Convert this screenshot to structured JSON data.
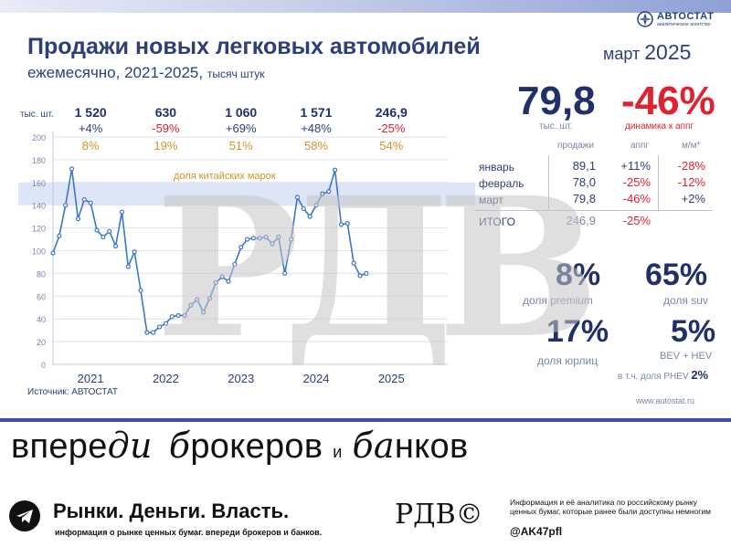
{
  "header": {
    "title": "Продажи новых легковых автомобилей",
    "subtitle": "ежемесячно, 2021-2025,",
    "unit": "тысяч штук",
    "period_month": "март",
    "period_year": "2025",
    "logo": "АВТОСТАТ",
    "logo_tagline": "аналитическое агентство"
  },
  "chart_data": {
    "type": "line",
    "ylabel_unit": "тыс. шт.",
    "ylim": [
      0,
      200
    ],
    "yticks": [
      "0",
      "20",
      "40",
      "60",
      "80",
      "100",
      "120",
      "140",
      "160",
      "180",
      "200"
    ],
    "year_labels": [
      "2021",
      "2022",
      "2023",
      "2024",
      "2025"
    ],
    "band": {
      "label": "доля китайских марок",
      "from": 140,
      "to": 160
    },
    "series": [
      {
        "values": [
          98,
          113,
          140,
          172,
          128,
          145,
          142,
          118,
          112,
          117,
          104,
          134,
          86,
          99,
          65,
          28,
          28,
          33,
          36,
          42,
          43,
          43,
          52,
          57,
          46,
          58,
          72,
          77,
          73,
          88,
          103,
          110,
          111,
          111,
          112,
          106,
          112,
          80,
          110,
          147,
          137,
          130,
          140,
          150,
          152,
          171,
          123,
          124,
          89,
          78,
          80
        ]
      }
    ],
    "annual": [
      {
        "year": "2021",
        "total": "1 520",
        "yoy": "+4%",
        "china_share": "8%"
      },
      {
        "year": "2022",
        "total": "630",
        "yoy": "-59%",
        "china_share": "19%"
      },
      {
        "year": "2023",
        "total": "1 060",
        "yoy": "+69%",
        "china_share": "51%"
      },
      {
        "year": "2024",
        "total": "1 571",
        "yoy": "+48%",
        "china_share": "58%"
      },
      {
        "year": "2025",
        "total": "246,9",
        "yoy": "-25%",
        "china_share": "54%"
      }
    ],
    "source": "Источник: АВТОСТАТ"
  },
  "kpi": {
    "sales_value": "79,8",
    "sales_unit": "тыс. шт.",
    "dynamics_value": "-46%",
    "dynamics_label": "динамика к аппг",
    "table_headers": [
      "продажи",
      "аппг",
      "м/м*"
    ],
    "rows": [
      {
        "label": "январь",
        "sales": "89,1",
        "yoy": "+11%",
        "mom": "-28%"
      },
      {
        "label": "февраль",
        "sales": "78,0",
        "yoy": "-25%",
        "mom": "-12%"
      },
      {
        "label": "март",
        "sales": "79,8",
        "yoy": "-46%",
        "mom": "+2%"
      }
    ],
    "total": {
      "label": "ИТОГО",
      "sales": "246,9",
      "yoy": "-25%"
    },
    "premium_value": "8%",
    "premium_label": "доля premium",
    "suv_value": "65%",
    "suv_label": "доля suv",
    "legal_value": "17%",
    "legal_label": "доля юрлиц",
    "ev_value": "5%",
    "ev_label": "BEV + HEV",
    "phev_note": "в т.ч. доля PHEV",
    "phev_value": "2%",
    "website": "www.autostat.ru"
  },
  "footer": {
    "slogan_a": "впере",
    "slogan_b": "ди",
    "slogan_c": "б",
    "slogan_d": "рокеров",
    "slogan_e": "и",
    "slogan_f": "ба",
    "slogan_g": "нков",
    "brand": "Рынки. Деньги. Власть.",
    "brand_sub": "информация о рынке ценных бумаг. впереди брокеров и банков.",
    "rzb": "РДВ©",
    "info": "Информация и её аналитика по российскому рынку ценных бумаг, которые ранее были доступны немногим",
    "handle": "@AK47pfl"
  },
  "watermark": "РДВ",
  "colors": {
    "accent": "#2d3f78",
    "line": "#3a77c6",
    "red": "#e0212f",
    "orange": "#d4922a",
    "band": "#dde5f6"
  }
}
